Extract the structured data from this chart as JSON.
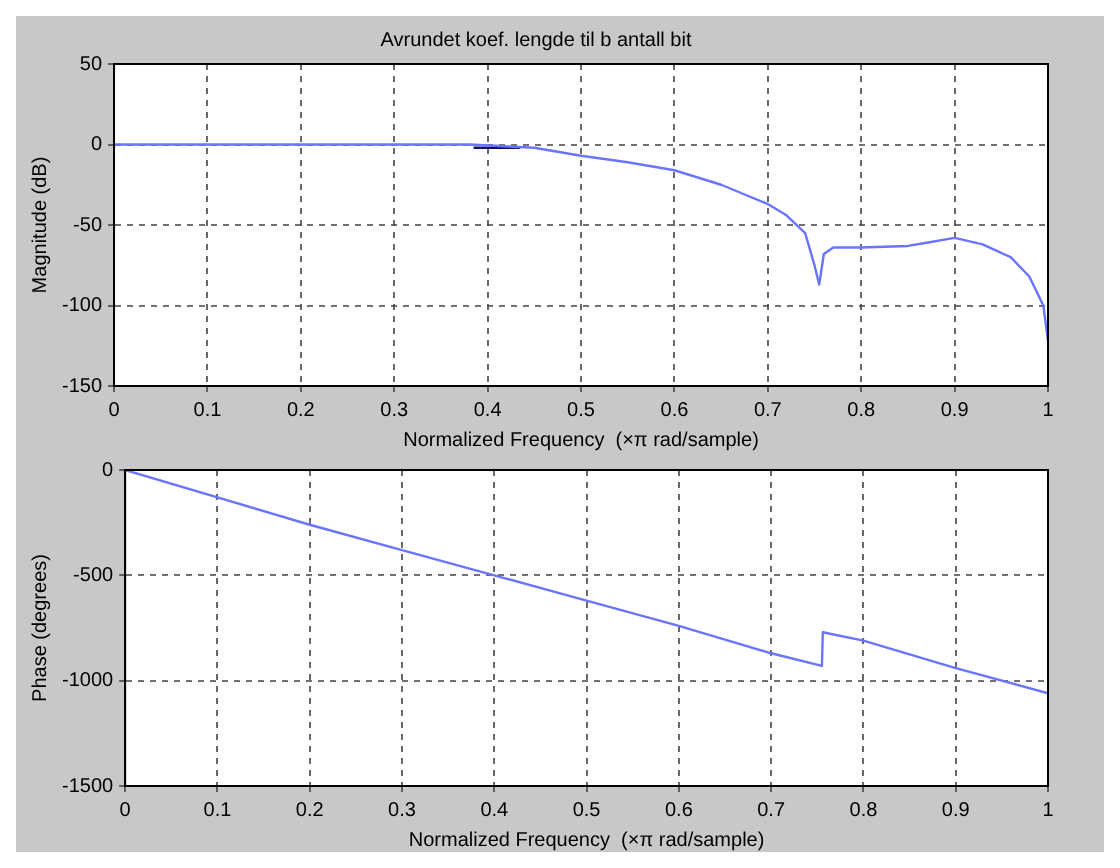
{
  "chart_data": [
    {
      "type": "line",
      "title": "Avrundet koef. lengde til b antall bit",
      "xlabel": "Normalized Frequency  (×π rad/sample)",
      "ylabel": "Magnitude (dB)",
      "xlim": [
        0,
        1
      ],
      "xticks": [
        0,
        0.1,
        0.2,
        0.3,
        0.4,
        0.5,
        0.6,
        0.7,
        0.8,
        0.9,
        1
      ],
      "ylim": [
        -150,
        50
      ],
      "yticks": [
        -150,
        -100,
        -50,
        0,
        50
      ],
      "grid": true,
      "legend": false,
      "marker": "none",
      "line_style": "solid",
      "series": [
        {
          "color": "#6a74ff",
          "x": [
            0,
            0.1,
            0.2,
            0.3,
            0.38,
            0.45,
            0.5,
            0.55,
            0.6,
            0.65,
            0.7,
            0.72,
            0.74,
            0.75,
            0.755,
            0.76,
            0.77,
            0.8,
            0.85,
            0.87,
            0.9,
            0.93,
            0.96,
            0.98,
            0.995,
            1
          ],
          "values": [
            0,
            0,
            0,
            0,
            0,
            -2,
            -7,
            -11,
            -16,
            -25,
            -37,
            -44,
            -55,
            -75,
            -87,
            -68,
            -64,
            -64,
            -63,
            -61,
            -58,
            -62,
            -70,
            -82,
            -100,
            -122
          ]
        },
        {
          "color": "#101060",
          "x": [
            0.385,
            0.435
          ],
          "values": [
            -2,
            -2
          ]
        }
      ]
    },
    {
      "type": "line",
      "xlabel": "Normalized Frequency  (×π rad/sample)",
      "ylabel": "Phase (degrees)",
      "xlim": [
        0,
        1
      ],
      "xticks": [
        0,
        0.1,
        0.2,
        0.3,
        0.4,
        0.5,
        0.6,
        0.7,
        0.8,
        0.9,
        1
      ],
      "ylim": [
        -1500,
        0
      ],
      "yticks": [
        -1500,
        -1000,
        -500,
        0
      ],
      "grid": true,
      "legend": false,
      "marker": "none",
      "line_style": "solid",
      "series": [
        {
          "color": "#6a74ff",
          "x": [
            0,
            0.1,
            0.2,
            0.3,
            0.4,
            0.5,
            0.6,
            0.7,
            0.755,
            0.756,
            0.8,
            0.9,
            1
          ],
          "values": [
            0,
            -130,
            -260,
            -380,
            -500,
            -620,
            -740,
            -870,
            -930,
            -770,
            -810,
            -940,
            -1060
          ]
        }
      ]
    }
  ]
}
